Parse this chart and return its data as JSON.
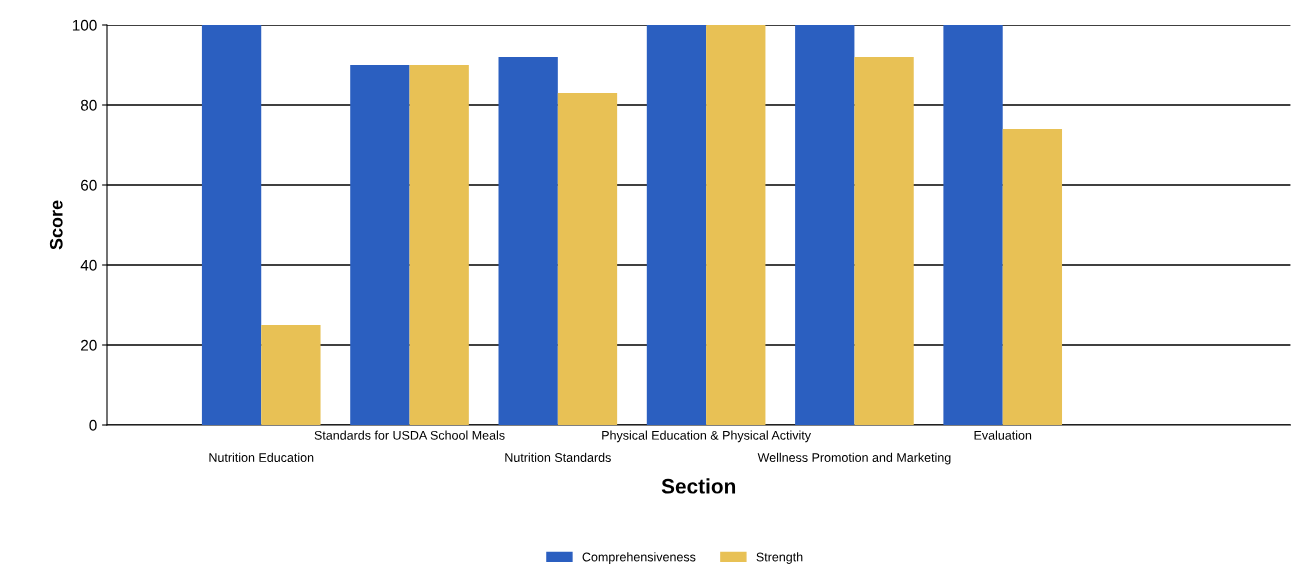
{
  "chart_data": {
    "type": "bar",
    "xlabel": "Section",
    "ylabel": "Score",
    "categories": [
      "Nutrition Education",
      "Standards for USDA School Meals",
      "Nutrition Standards",
      "Physical Education & Physical Activity",
      "Wellness Promotion and Marketing",
      "Evaluation"
    ],
    "series": [
      {
        "name": "Comprehensiveness",
        "color": "#2b5fc0",
        "values": [
          100,
          90,
          92,
          100,
          100,
          100
        ]
      },
      {
        "name": "Strength",
        "color": "#e8c155",
        "values": [
          25,
          90,
          83,
          100,
          92,
          74
        ]
      }
    ],
    "ylim": [
      0,
      100
    ],
    "yticks": [
      0,
      20,
      40,
      60,
      80,
      100
    ],
    "grid": "y",
    "legend": "bottom"
  }
}
